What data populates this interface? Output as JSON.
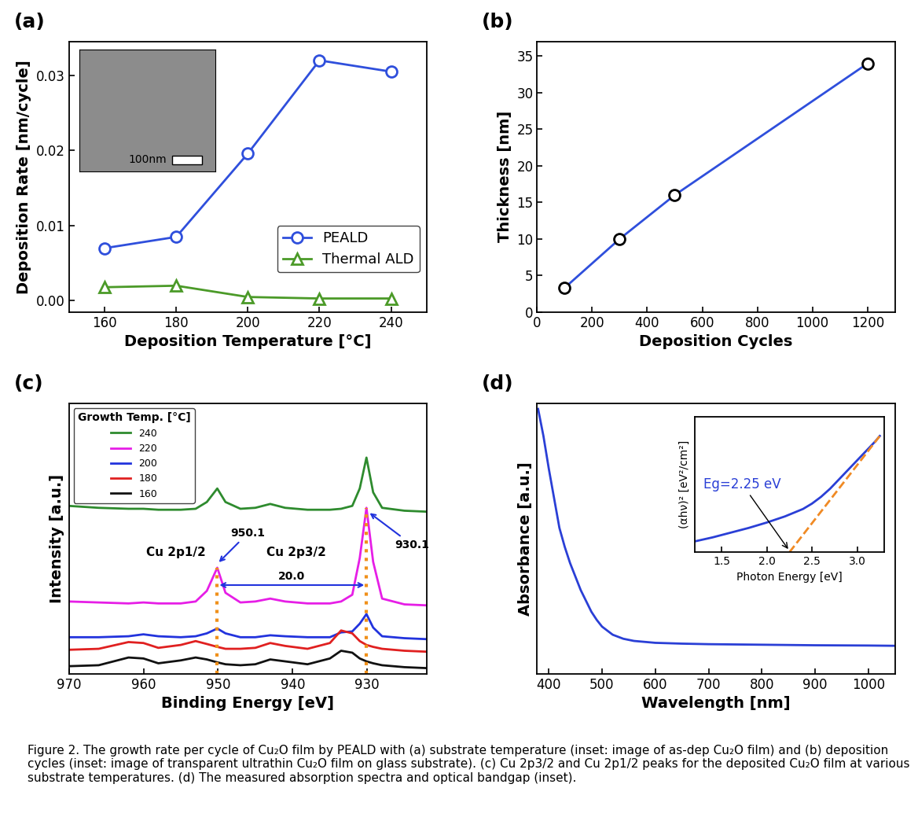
{
  "chart_data": [
    {
      "type": "line",
      "panel": "(a)",
      "x_label": "Deposition Temperature [°C]",
      "y_label": "Deposition Rate [nm/cycle]",
      "x": [
        160,
        180,
        200,
        220,
        240
      ],
      "series": [
        {
          "name": "PEALD",
          "color": "#2f4fdc",
          "marker": "circle",
          "line_style": "solid",
          "values": [
            0.007,
            0.0085,
            0.0196,
            0.032,
            0.0305
          ]
        },
        {
          "name": "Thermal ALD",
          "color": "#4b9a28",
          "marker": "triangle",
          "line_style": "solid",
          "values": [
            0.0018,
            0.002,
            0.0005,
            0.0003,
            0.0003
          ]
        }
      ],
      "xlim": [
        150,
        250
      ],
      "xticks": [
        160,
        180,
        200,
        220,
        240
      ],
      "ylim": [
        -0.0015,
        0.0345
      ],
      "yticks": [
        {
          "value": 0.0,
          "label": "0.00"
        },
        {
          "value": 0.01,
          "label": "0.01"
        },
        {
          "value": 0.02,
          "label": "0.02"
        },
        {
          "value": 0.03,
          "label": "0.03"
        }
      ],
      "legend": "lower right",
      "inset": {
        "scale_bar": "100nm"
      }
    },
    {
      "type": "line",
      "panel": "(b)",
      "x_label": "Deposition Cycles",
      "y_label": "Thickness [nm]",
      "x": [
        100,
        300,
        500,
        1200
      ],
      "series": [
        {
          "color": "#2f4fdc",
          "marker": "circle",
          "line_style": "solid",
          "values": [
            3.3,
            10,
            16,
            34
          ]
        }
      ],
      "xlim": [
        0,
        1300
      ],
      "xticks": [
        0,
        200,
        400,
        600,
        800,
        1000,
        1200
      ],
      "ylim": [
        0,
        37
      ],
      "yticks": [
        0,
        5,
        10,
        15,
        20,
        25,
        30,
        35
      ]
    },
    {
      "type": "line",
      "panel": "(c)",
      "x_label": "Binding Energy [eV]",
      "y_label": "Intensity [a.u.]",
      "x": [
        970,
        966,
        962,
        960,
        958,
        955,
        953,
        951.5,
        950.1,
        949,
        947,
        945,
        943,
        941,
        938,
        935,
        933.5,
        932,
        931,
        930.1,
        929.2,
        928,
        925,
        922
      ],
      "series": [
        {
          "name": "240",
          "color": "#2e8b2e",
          "values": [
            8.7,
            8.6,
            8.55,
            8.55,
            8.5,
            8.5,
            8.55,
            8.9,
            9.6,
            8.9,
            8.55,
            8.6,
            8.8,
            8.6,
            8.5,
            8.5,
            8.55,
            8.7,
            9.6,
            11.2,
            9.4,
            8.6,
            8.45,
            8.4
          ]
        },
        {
          "name": "220",
          "color": "#e61ee6",
          "values": [
            3.75,
            3.7,
            3.65,
            3.7,
            3.65,
            3.65,
            3.75,
            4.3,
            5.5,
            4.2,
            3.7,
            3.75,
            3.9,
            3.75,
            3.65,
            3.65,
            3.75,
            4.1,
            6.0,
            8.6,
            5.8,
            3.9,
            3.6,
            3.55
          ]
        },
        {
          "name": "200",
          "color": "#2233dd",
          "values": [
            1.9,
            1.9,
            1.95,
            2.05,
            1.95,
            1.9,
            1.95,
            2.1,
            2.35,
            2.1,
            1.9,
            1.9,
            2.0,
            1.95,
            1.9,
            1.9,
            2.15,
            2.2,
            2.6,
            3.1,
            2.4,
            1.95,
            1.85,
            1.8
          ]
        },
        {
          "name": "180",
          "color": "#e02020",
          "values": [
            1.25,
            1.3,
            1.65,
            1.6,
            1.35,
            1.5,
            1.7,
            1.55,
            1.4,
            1.3,
            1.3,
            1.35,
            1.6,
            1.45,
            1.3,
            1.6,
            2.25,
            2.1,
            1.7,
            1.5,
            1.4,
            1.3,
            1.2,
            1.15
          ]
        },
        {
          "name": "160",
          "color": "#111111",
          "values": [
            0.4,
            0.45,
            0.85,
            0.8,
            0.55,
            0.7,
            0.85,
            0.75,
            0.6,
            0.5,
            0.45,
            0.5,
            0.75,
            0.65,
            0.5,
            0.8,
            1.2,
            1.1,
            0.8,
            0.65,
            0.55,
            0.45,
            0.35,
            0.3
          ]
        }
      ],
      "xlim": [
        970,
        922
      ],
      "xticks": [
        970,
        960,
        950,
        940,
        930
      ],
      "ylim": [
        0,
        14
      ],
      "tick_labels": "x",
      "legend": "upper left",
      "legend_title": "Growth Temp. [°C]",
      "peaks": [
        {
          "name": "Cu 2p1/2",
          "x": 950.1,
          "label": "950.1"
        },
        {
          "name": "Cu 2p3/2",
          "x": 930.1,
          "label": "930.1"
        }
      ],
      "separation": {
        "value": 20.0,
        "label": "20.0"
      }
    },
    {
      "type": "line",
      "panel": "(d)",
      "x_label": "Wavelength [nm]",
      "y_label": "Absorbance [a.u.]",
      "x": [
        380,
        390,
        400,
        410,
        420,
        430,
        440,
        450,
        460,
        470,
        480,
        490,
        500,
        520,
        540,
        560,
        600,
        650,
        700,
        800,
        900,
        1000,
        1050
      ],
      "series": [
        {
          "color": "#2a3fd6",
          "line_style": "solid",
          "values": [
            9.8,
            8.8,
            7.6,
            6.5,
            5.4,
            4.7,
            4.1,
            3.6,
            3.1,
            2.7,
            2.3,
            2.0,
            1.75,
            1.45,
            1.3,
            1.22,
            1.15,
            1.12,
            1.1,
            1.08,
            1.06,
            1.05,
            1.04
          ]
        }
      ],
      "xlim": [
        378,
        1050
      ],
      "xticks": [
        400,
        500,
        600,
        700,
        800,
        900,
        1000
      ],
      "ylim": [
        0,
        10
      ],
      "tick_labels": "x",
      "inset": {
        "type": "line",
        "x_label": "Photon Energy [eV]",
        "y_label": "(αhν)² [eV²/cm²]",
        "x": [
          1.2,
          1.4,
          1.6,
          1.8,
          2.0,
          2.2,
          2.4,
          2.5,
          2.6,
          2.7,
          2.8,
          2.9,
          3.0,
          3.1,
          3.2,
          3.25
        ],
        "series": [
          {
            "color": "#2a3fd6",
            "line_style": "solid",
            "values": [
              0.8,
              1.1,
              1.45,
              1.8,
              2.2,
              2.65,
              3.2,
              3.6,
              4.1,
              4.7,
              5.4,
              6.1,
              6.8,
              7.5,
              8.2,
              8.6
            ]
          }
        ],
        "fit": {
          "x": [
            2.25,
            3.25
          ],
          "values": [
            0,
            8.6
          ],
          "color": "#f08a24",
          "line_style": "dashed"
        },
        "bandgap": {
          "value": 2.25,
          "label": "Eg=2.25 eV"
        },
        "xlim": [
          1.2,
          3.3
        ],
        "xticks": [
          1.5,
          2.0,
          2.5,
          3.0
        ],
        "ylim": [
          0,
          10
        ],
        "tick_labels": "x"
      }
    }
  ],
  "caption": "Figure 2. The growth rate per cycle of Cu₂O film by PEALD with (a) substrate temperature (inset: image of as-dep Cu₂O film) and (b) deposition cycles (inset: image of transparent ultrathin Cu₂O film on glass substrate). (c) Cu 2p3/2 and Cu 2p1/2 peaks for the deposited Cu₂O film at various substrate temperatures. (d) The measured absorption spectra and optical bandgap (inset)."
}
